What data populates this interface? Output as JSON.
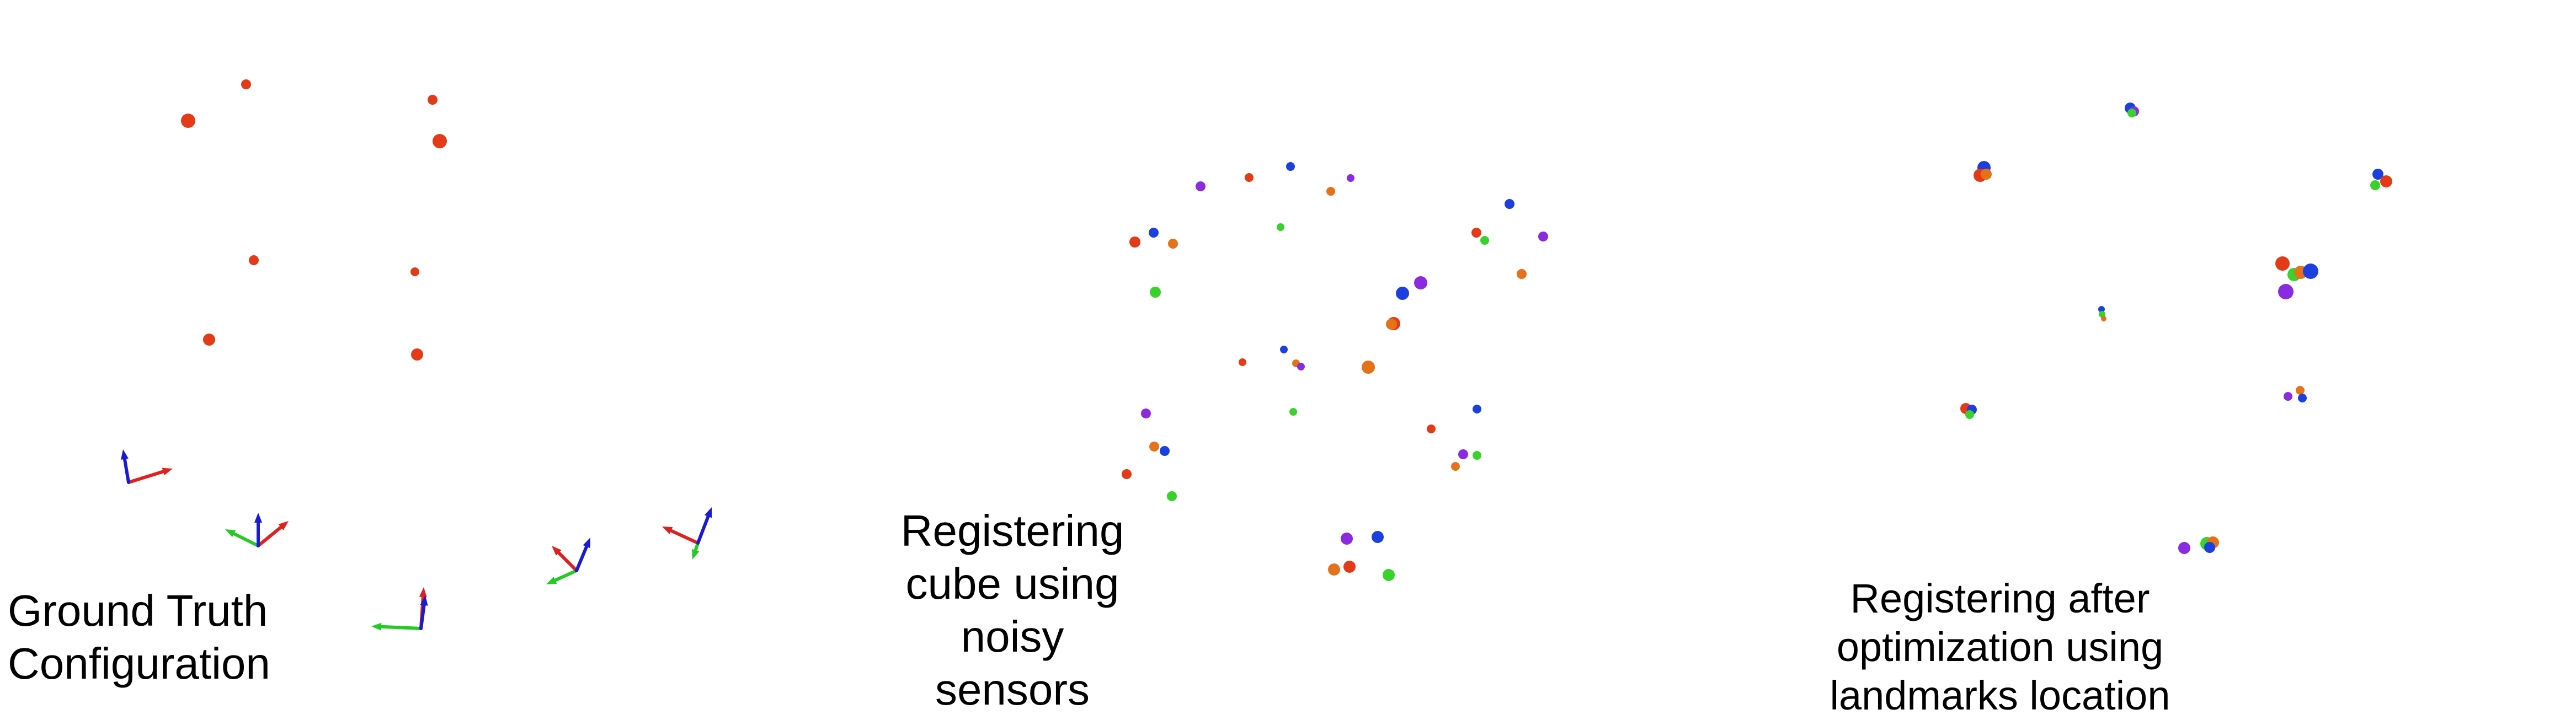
{
  "figure": {
    "panels": [
      {
        "id": "ground-truth",
        "caption_lines": [
          "Ground Truth",
          "Configuration"
        ]
      },
      {
        "id": "noisy",
        "caption_lines": [
          "Registering",
          "cube using",
          "noisy",
          "sensors"
        ]
      },
      {
        "id": "optimized",
        "caption_lines": [
          "Registering after",
          "optimization using",
          "landmarks location"
        ]
      }
    ],
    "colors": {
      "red": "#e43a17",
      "orange": "#e57218",
      "blue": "#1c3fe0",
      "purple": "#8a2be2",
      "green": "#37d22a",
      "axis_red": "#e02020",
      "axis_green": "#22cc22",
      "axis_blue": "#1a1ad6"
    }
  }
}
